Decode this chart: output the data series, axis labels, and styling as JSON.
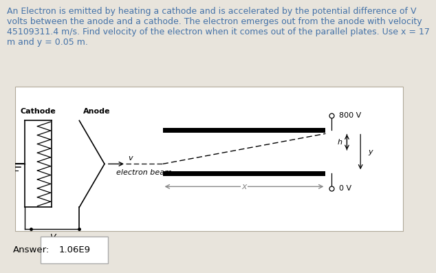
{
  "bg_color": "#e8e4dc",
  "diagram_bg": "#ffffff",
  "title_text": "An Electron is emitted by heating a cathode and is accelerated by the potential difference of V\nvolts between the anode and a cathode. The electron emerges out from the anode with velocity\n45109311.4 m/s. Find velocity of the electron when it comes out of the parallel plates. Use x = 17\nm and y = 0.05 m.",
  "title_color": "#4472a8",
  "title_fontsize": 9.0,
  "answer_label": "Answer:",
  "answer_value": "1.06E9",
  "answer_fontsize": 9.5,
  "plate_800V": "800 V",
  "plate_0V": "0 V",
  "cathode_label": "Cathode",
  "anode_label": "Anode",
  "v_label": "v",
  "beam_label": "electron beam",
  "x_label": "x",
  "h_label": "h",
  "y_label": "y"
}
